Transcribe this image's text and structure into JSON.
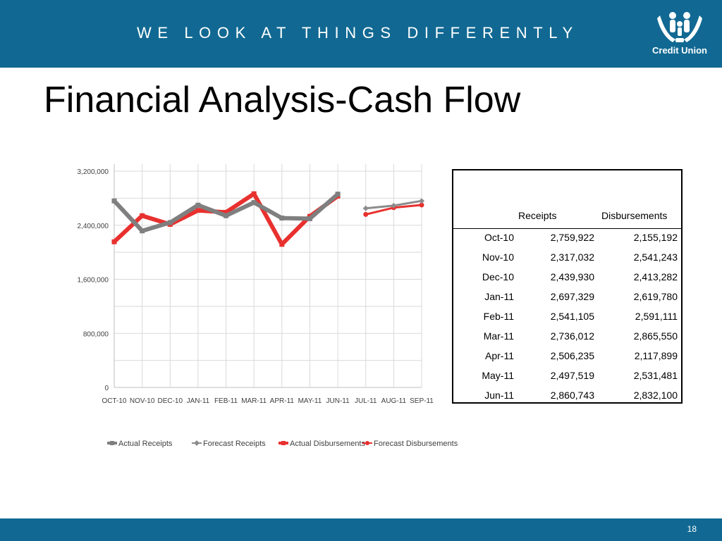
{
  "header": {
    "tagline": "WE LOOK AT THINGS DIFFERENTLY",
    "logo_text": "Credit Union"
  },
  "title": "Financial Analysis-Cash Flow",
  "colors": {
    "bar": "#116993",
    "actual_receipts": "#7f7f7f",
    "forecast_receipts": "#8c8c8c",
    "actual_disbursements": "#e8312f",
    "forecast_disbursements": "#e8312f"
  },
  "chart_data": {
    "type": "line",
    "categories": [
      "OCT-10",
      "NOV-10",
      "DEC-10",
      "JAN-11",
      "FEB-11",
      "MAR-11",
      "APR-11",
      "MAY-11",
      "JUN-11",
      "JUL-11",
      "AUG-11",
      "SEP-11"
    ],
    "ylim": [
      0,
      3200000
    ],
    "yticks": [
      "0",
      "800,000",
      "1,600,000",
      "2,400,000",
      "3,200,000"
    ],
    "grid": true,
    "legend_position": "bottom",
    "series": [
      {
        "name": "Actual Receipts",
        "values": [
          2759922,
          2317032,
          2439930,
          2697329,
          2541105,
          2736012,
          2506235,
          2497519,
          2860743,
          null,
          null,
          null
        ]
      },
      {
        "name": "Forecast Receipts",
        "values": [
          null,
          null,
          null,
          null,
          null,
          null,
          null,
          null,
          null,
          2650000,
          2690000,
          2760000
        ]
      },
      {
        "name": "Actual Disbursements",
        "values": [
          2155192,
          2541243,
          2413282,
          2619780,
          2591111,
          2865550,
          2117899,
          2531481,
          2832100,
          null,
          null,
          null
        ]
      },
      {
        "name": "Forecast Disbursements",
        "values": [
          null,
          null,
          null,
          null,
          null,
          null,
          null,
          null,
          null,
          2560000,
          2660000,
          2700000
        ]
      }
    ]
  },
  "table": {
    "headers": [
      "Receipts",
      "Disbursements"
    ],
    "rows": [
      {
        "period": "Oct-10",
        "receipts": "2,759,922",
        "disbursements": "2,155,192"
      },
      {
        "period": "Nov-10",
        "receipts": "2,317,032",
        "disbursements": "2,541,243"
      },
      {
        "period": "Dec-10",
        "receipts": "2,439,930",
        "disbursements": "2,413,282"
      },
      {
        "period": "Jan-11",
        "receipts": "2,697,329",
        "disbursements": "2,619,780"
      },
      {
        "period": "Feb-11",
        "receipts": "2,541,105",
        "disbursements": "2,591,111"
      },
      {
        "period": "Mar-11",
        "receipts": "2,736,012",
        "disbursements": "2,865,550"
      },
      {
        "period": "Apr-11",
        "receipts": "2,506,235",
        "disbursements": "2,117,899"
      },
      {
        "period": "May-11",
        "receipts": "2,497,519",
        "disbursements": "2,531,481"
      },
      {
        "period": "Jun-11",
        "receipts": "2,860,743",
        "disbursements": "2,832,100"
      }
    ]
  },
  "footer": {
    "page_number": "18"
  }
}
